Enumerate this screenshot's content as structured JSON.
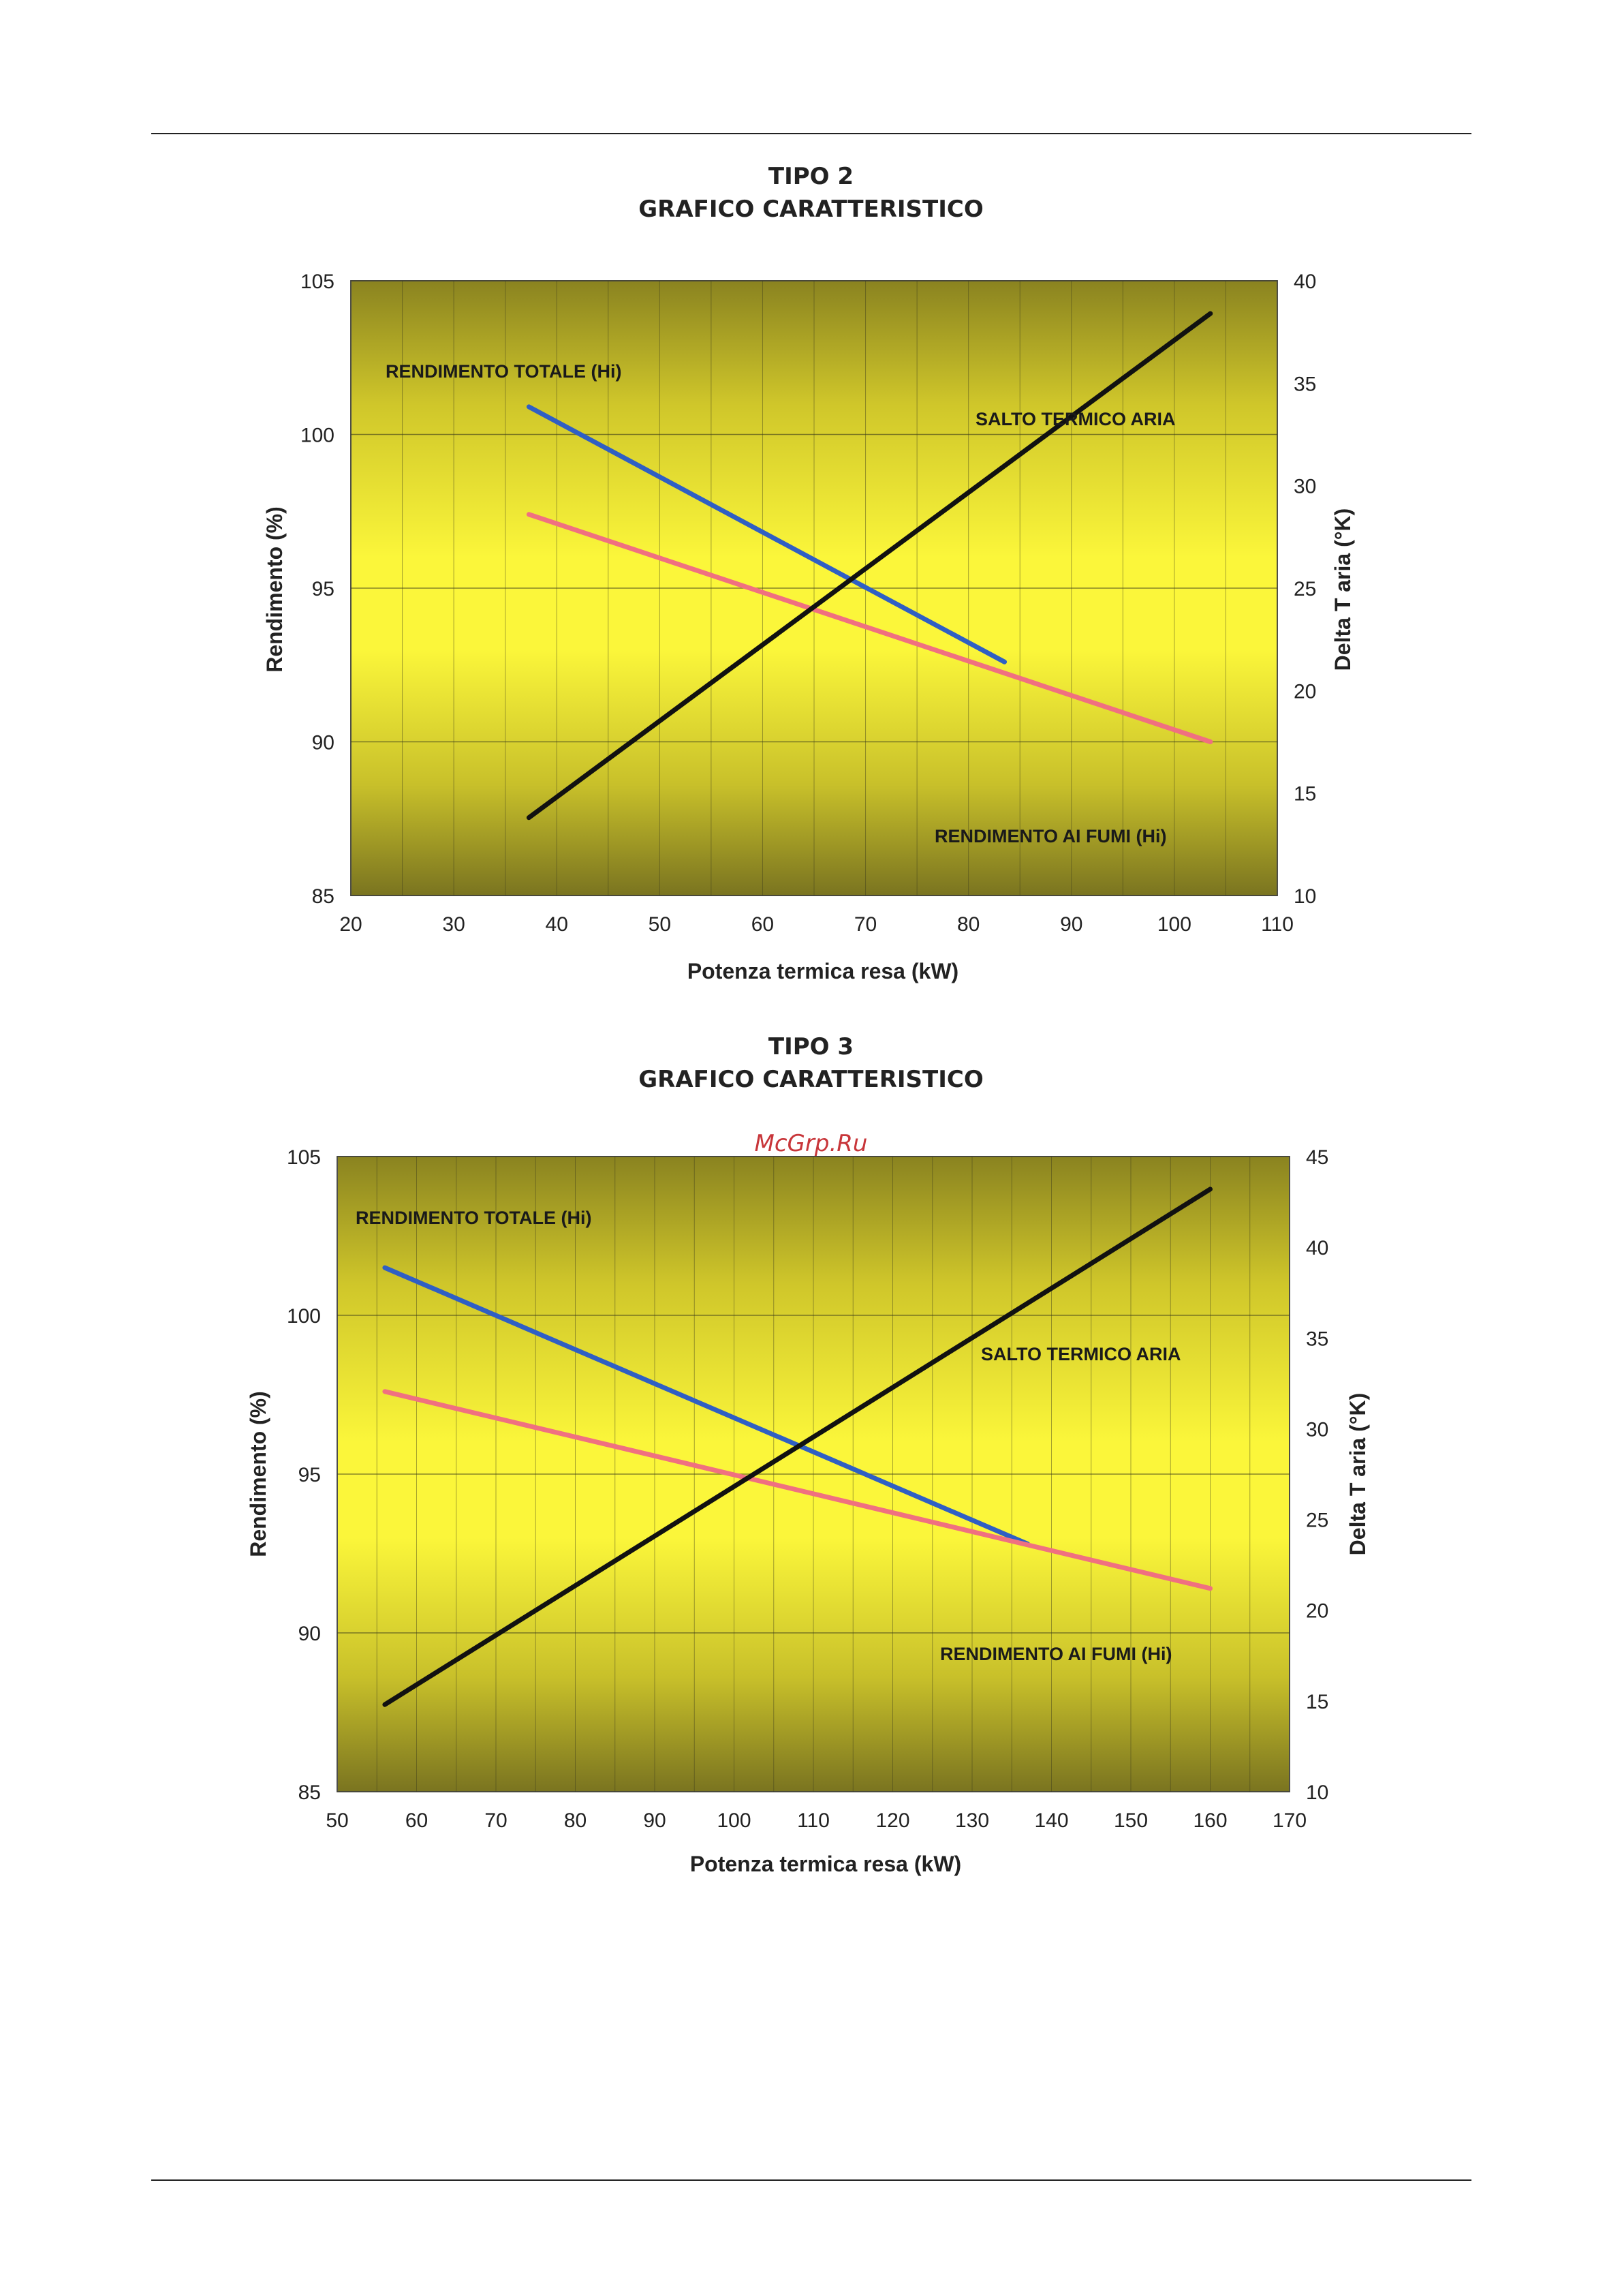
{
  "watermark": "McGrp.Ru",
  "chart_data": [
    {
      "type": "line",
      "title": "TIPO 2",
      "subtitle": "GRAFICO CARATTERISTICO",
      "xlabel": "Potenza termica resa (kW)",
      "ylabel": "Rendimento (%)",
      "y2label": "Delta T aria (°K)",
      "xlim": [
        20,
        110
      ],
      "ylim": [
        85,
        105
      ],
      "y2lim": [
        10,
        40
      ],
      "xticks": [
        "20",
        "30",
        "40",
        "50",
        "60",
        "70",
        "80",
        "90",
        "100",
        "110"
      ],
      "yticks": [
        "85",
        "90",
        "95",
        "100",
        "105"
      ],
      "y2ticks": [
        "10",
        "15",
        "20",
        "25",
        "30",
        "35",
        "40"
      ],
      "grid": true,
      "series": [
        {
          "name": "RENDIMENTO TOTALE (Hi)",
          "axis": "left",
          "color": "#2f5fc4",
          "x": [
            37.3,
            83.5
          ],
          "y": [
            100.9,
            92.6
          ]
        },
        {
          "name": "RENDIMENTO AI FUMI (Hi)",
          "axis": "left",
          "color": "#f07080",
          "x": [
            37.3,
            103.5
          ],
          "y": [
            97.4,
            90.0
          ]
        },
        {
          "name": "SALTO TERMICO ARIA",
          "axis": "right",
          "color": "#111111",
          "x": [
            37.3,
            103.5
          ],
          "y": [
            13.8,
            38.4
          ]
        }
      ]
    },
    {
      "type": "line",
      "title": "TIPO 3",
      "subtitle": "GRAFICO CARATTERISTICO",
      "xlabel": "Potenza termica resa (kW)",
      "ylabel": "Rendimento (%)",
      "y2label": "Delta T aria (°K)",
      "xlim": [
        50,
        170
      ],
      "ylim": [
        85,
        105
      ],
      "y2lim": [
        10,
        45
      ],
      "xticks": [
        "50",
        "60",
        "70",
        "80",
        "90",
        "100",
        "110",
        "120",
        "130",
        "140",
        "150",
        "160",
        "170"
      ],
      "yticks": [
        "85",
        "90",
        "95",
        "100",
        "105"
      ],
      "y2ticks": [
        "10",
        "15",
        "20",
        "25",
        "30",
        "35",
        "40",
        "45"
      ],
      "grid": true,
      "series": [
        {
          "name": "RENDIMENTO TOTALE (Hi)",
          "axis": "left",
          "color": "#2f5fc4",
          "x": [
            56,
            137
          ],
          "y": [
            101.5,
            92.8
          ]
        },
        {
          "name": "RENDIMENTO AI FUMI (Hi)",
          "axis": "left",
          "color": "#f07080",
          "x": [
            56,
            160
          ],
          "y": [
            97.6,
            91.4
          ]
        },
        {
          "name": "SALTO TERMICO ARIA",
          "axis": "right",
          "color": "#111111",
          "x": [
            56,
            160
          ],
          "y": [
            14.8,
            43.2
          ]
        }
      ]
    }
  ]
}
